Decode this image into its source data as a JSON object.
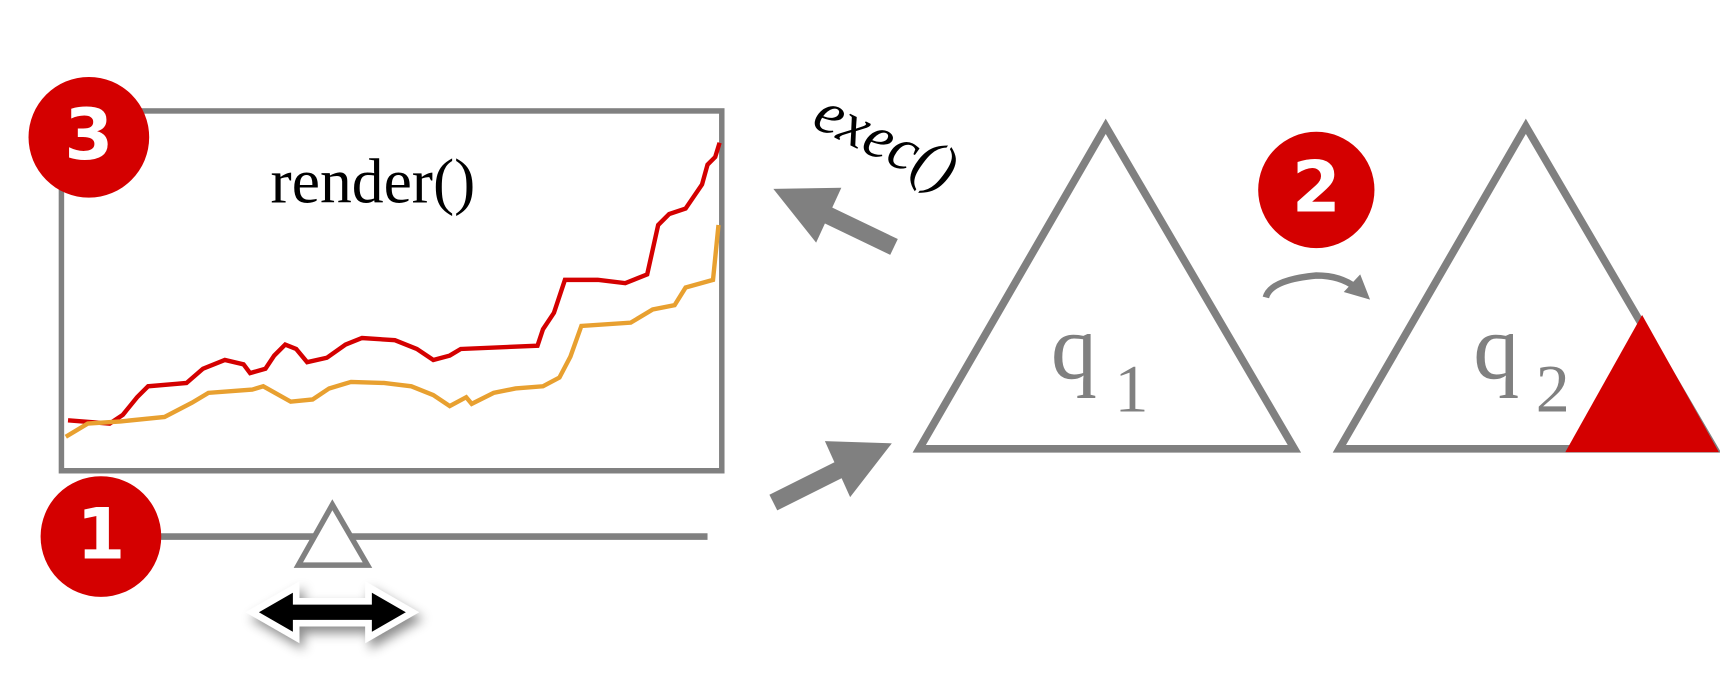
{
  "badges": [
    "1",
    "2",
    "3"
  ],
  "render_label": "render()",
  "exec_label": "exec()",
  "nodes": [
    {
      "label": "q",
      "subscript": "1"
    },
    {
      "label": "q",
      "subscript": "2"
    }
  ]
}
